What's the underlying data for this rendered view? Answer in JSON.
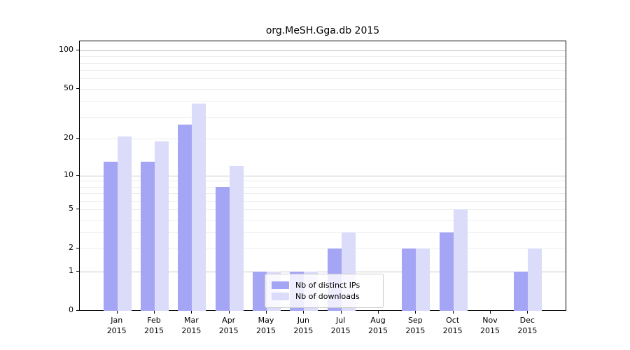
{
  "title": "org.MeSH.Gga.db 2015",
  "chart_data": {
    "type": "bar",
    "title": "org.MeSH.Gga.db 2015",
    "scale": "log1p",
    "ylim": [
      0,
      100
    ],
    "yticks": [
      0,
      1,
      2,
      5,
      10,
      20,
      50,
      100
    ],
    "grid_minor_values": [
      2,
      3,
      4,
      5,
      6,
      7,
      8,
      9,
      10,
      20,
      30,
      40,
      50,
      60,
      70,
      80,
      90
    ],
    "grid_major_values": [
      1,
      10,
      100
    ],
    "categories": [
      "Jan",
      "Feb",
      "Mar",
      "Apr",
      "May",
      "Jun",
      "Jul",
      "Aug",
      "Sep",
      "Oct",
      "Nov",
      "Dec"
    ],
    "category_year": "2015",
    "series": [
      {
        "name": "Nb of distinct IPs",
        "color": "#a5a5f5",
        "values": [
          13,
          13,
          26,
          8,
          1,
          1,
          2,
          0,
          2,
          3,
          0,
          1
        ]
      },
      {
        "name": "Nb of downloads",
        "color": "#dbdbfa",
        "values": [
          21,
          19,
          38,
          12,
          1,
          1,
          3,
          0,
          2,
          5,
          0,
          2
        ]
      }
    ],
    "legend_position": "inside-bottom-center-left"
  },
  "colors": {
    "bar_distinct_ips": "#a5a5f5",
    "bar_downloads": "#dbdbfa",
    "grid_minor": "#ececec",
    "grid_major": "#c6c6c6",
    "spine": "#000000",
    "background": "#ffffff"
  }
}
